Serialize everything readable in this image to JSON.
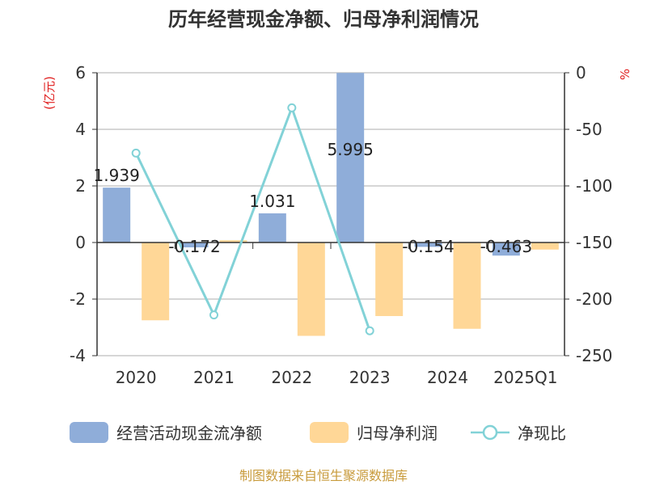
{
  "chart_data": {
    "type": "bar+line",
    "title": "历年经营现金净额、归母净利润情况",
    "categories": [
      "2020",
      "2021",
      "2022",
      "2023",
      "2024",
      "2025Q1"
    ],
    "y_left": {
      "unit_label": "(亿元)",
      "ylim": [
        -4,
        6
      ],
      "ticks": [
        "6",
        "4",
        "2",
        "0",
        "-2",
        "-4"
      ]
    },
    "y_right": {
      "unit_label": "%",
      "ylim": [
        -250,
        0
      ],
      "ticks": [
        "0",
        "-50",
        "-100",
        "-150",
        "-200",
        "-250"
      ]
    },
    "series": [
      {
        "name": "经营活动现金流净额",
        "type": "bar",
        "axis": "left",
        "color": "#8fadd9",
        "values": [
          1.939,
          -0.172,
          1.031,
          5.995,
          -0.154,
          -0.463
        ],
        "labels": [
          "1.939",
          "-0.172",
          "1.031",
          "5.995",
          "-0.154",
          "-0.463"
        ]
      },
      {
        "name": "归母净利润",
        "type": "bar",
        "axis": "left",
        "color": "#ffd797",
        "values": [
          -2.75,
          0.08,
          -3.3,
          -2.6,
          -3.05,
          -0.25
        ]
      },
      {
        "name": "净现比",
        "type": "line",
        "axis": "right",
        "color": "#82d2d7",
        "values": [
          -71,
          -214,
          -31,
          -228,
          null,
          null
        ]
      }
    ],
    "grid": true,
    "legend_position": "bottom"
  },
  "source_text": "制图数据来自恒生聚源数据库",
  "colors": {
    "axis": "#333333",
    "grid": "#c8c8c8",
    "unit": "#e02020",
    "source": "#c89b3c"
  }
}
